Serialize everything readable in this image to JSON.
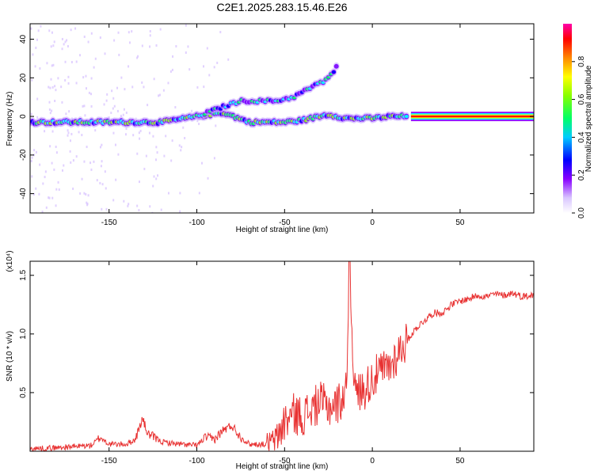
{
  "title": "C2E1.2025.283.15.46.E26",
  "colors": {
    "snr_line": "#e83232",
    "spectrogram_background": "#ffffff",
    "colormap": [
      "#ffffff",
      "#d9c6ff",
      "#8800ff",
      "#0000ff",
      "#00ffff",
      "#00ff66",
      "#88ff00",
      "#ffff00",
      "#ff8800",
      "#ff0000",
      "#ff00aa"
    ]
  },
  "chart_data": [
    {
      "type": "heatmap",
      "xlabel": "Height of straight line (km)",
      "ylabel": "Frequency (Hz)",
      "xlim": [
        -195,
        92
      ],
      "ylim": [
        -50,
        48
      ],
      "xticks": [
        -150,
        -100,
        -50,
        0,
        50
      ],
      "yticks": [
        -40,
        -20,
        0,
        20,
        40
      ],
      "colorbar": {
        "label": "Normalized spectral amplitude",
        "range": [
          0,
          1
        ],
        "ticks": [
          0.0,
          0.2,
          0.4,
          0.6,
          0.8
        ]
      },
      "features": [
        {
          "segment": "main band",
          "x": [
            -195,
            -150,
            -120,
            -100,
            -85,
            -70,
            -50,
            -40,
            -25,
            -15,
            0,
            10,
            20,
            92
          ],
          "y": [
            -3,
            -3,
            -3,
            0,
            2,
            -3,
            -3,
            -2,
            1,
            -1,
            -1,
            0,
            0,
            0
          ]
        },
        {
          "segment": "upper branch",
          "x": [
            -100,
            -85,
            -75,
            -55,
            -45,
            -35,
            -28,
            -22,
            -20
          ],
          "y": [
            0,
            5,
            8,
            8,
            10,
            15,
            18,
            23,
            27
          ]
        },
        {
          "segment": "constant band",
          "x": [
            22,
            92
          ],
          "y": [
            0,
            0
          ]
        }
      ]
    },
    {
      "type": "line",
      "xlabel": "Height of straight line (km)",
      "ylabel": "SNR (10 * v/v)",
      "ylabel_units": "(x10⁴)",
      "xlim": [
        -195,
        92
      ],
      "ylim": [
        0,
        1.62
      ],
      "xticks": [
        -150,
        -100,
        -50,
        0,
        50
      ],
      "yticks": [
        0.5,
        1.0,
        1.5
      ],
      "series": [
        {
          "x": [
            -195,
            -180,
            -170,
            -160,
            -155,
            -150,
            -140,
            -135,
            -131,
            -128,
            -120,
            -110,
            -100,
            -95,
            -90,
            -85,
            -80,
            -75,
            -70,
            -60,
            -55,
            -50,
            -45,
            -40,
            -35,
            -30,
            -25,
            -20,
            -15,
            -13,
            -10,
            -5,
            0,
            5,
            10,
            15,
            20,
            25,
            30,
            35,
            40,
            45,
            50,
            55,
            60,
            65,
            70,
            75,
            80,
            85,
            92
          ],
          "y": [
            0.02,
            0.03,
            0.04,
            0.05,
            0.12,
            0.06,
            0.06,
            0.1,
            0.28,
            0.15,
            0.08,
            0.06,
            0.05,
            0.12,
            0.1,
            0.18,
            0.22,
            0.12,
            0.06,
            0.06,
            0.1,
            0.25,
            0.32,
            0.3,
            0.35,
            0.42,
            0.38,
            0.4,
            0.5,
            1.55,
            0.5,
            0.52,
            0.62,
            0.68,
            0.72,
            0.85,
            0.95,
            1.05,
            1.12,
            1.18,
            1.18,
            1.25,
            1.28,
            1.3,
            1.33,
            1.32,
            1.34,
            1.33,
            1.35,
            1.32,
            1.33
          ]
        }
      ]
    }
  ]
}
